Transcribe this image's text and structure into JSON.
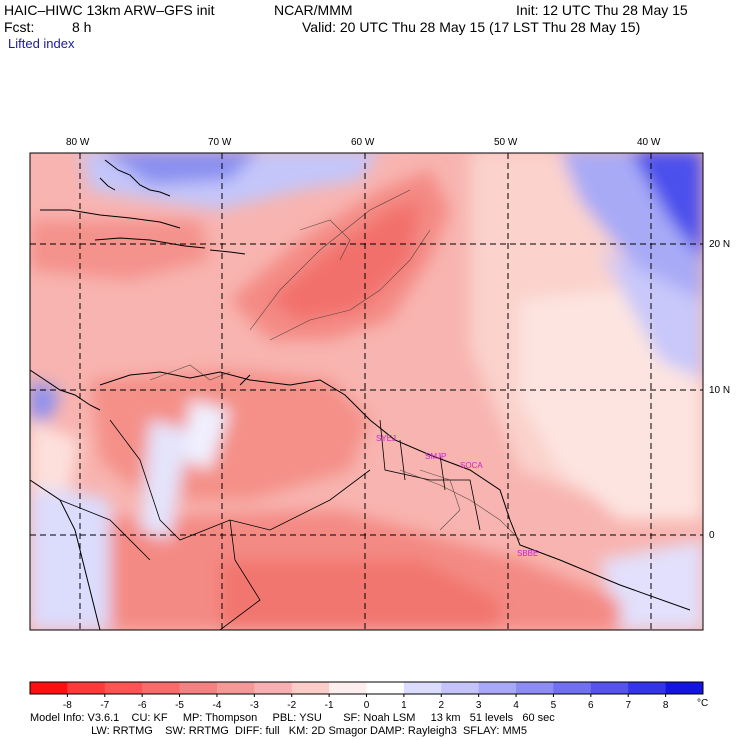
{
  "header": {
    "model_title": "HAIC–HIWC 13km ARW–GFS init",
    "org": "NCAR/MMM",
    "init": "Init: 12 UTC Thu 28 May 15",
    "fcst_label": "Fcst:",
    "fcst_value": "8 h",
    "valid": "Valid: 20 UTC Thu 28 May 15 (17 LST Thu 28 May 15)",
    "field": "Lifted index"
  },
  "axes": {
    "lon_labels": [
      "80 W",
      "70 W",
      "60 W",
      "50 W",
      "40 W"
    ],
    "lat_labels": [
      "20 N",
      "10 N",
      "0"
    ]
  },
  "stations": [
    "SYEJ",
    "SMJP",
    "SOCA",
    "SBBE"
  ],
  "colorbar": {
    "ticks": [
      "-8",
      "-7",
      "-6",
      "-5",
      "-4",
      "-3",
      "-2",
      "-1",
      "0",
      "1",
      "2",
      "3",
      "4",
      "5",
      "6",
      "7",
      "8"
    ],
    "unit": "°C",
    "colors": [
      "#ff1010",
      "#ff3a3a",
      "#ff5454",
      "#fa6c6c",
      "#f58282",
      "#f59898",
      "#f8b0b0",
      "#fcccc8",
      "#ffeeee",
      "#ffffff",
      "#dcdcff",
      "#c4c4fa",
      "#a8a8f8",
      "#8c8cf4",
      "#7070f0",
      "#5454ec",
      "#3434e8",
      "#1414e0"
    ]
  },
  "footer": {
    "line1": "Model Info: V3.6.1    CU: KF     MP: Thompson     PBL: YSU       SF: Noah LSM     13 km   51 levels   60 sec",
    "line2": "                    LW: RRTMG    SW: RRTMG  DIFF: full   KM: 2D Smagor DAMP: Rayleigh3  SFLAY: MM5"
  }
}
